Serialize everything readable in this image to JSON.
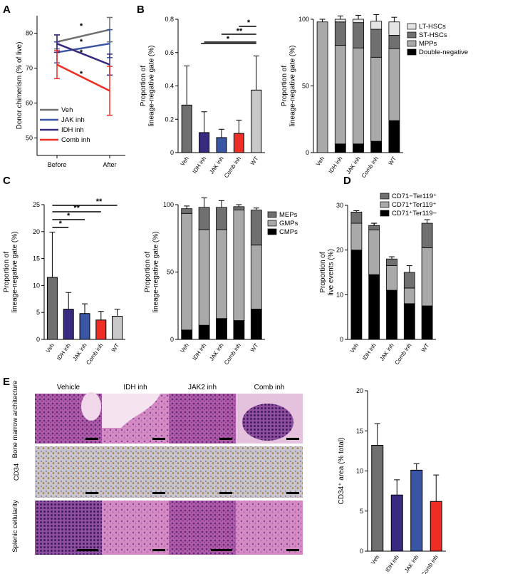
{
  "figure": {
    "colors": {
      "Veh": "#707070",
      "IDH": "#3a2a7e",
      "JAK": "#3a55a4",
      "Comb": "#ee2d24",
      "WT": "#c8c8c8",
      "LT": "#e4e4e4",
      "ST": "#707070",
      "MPP": "#a9a9a9",
      "DN": "#000000",
      "MEP": "#707070",
      "GMP": "#a9a9a9",
      "CMP": "#000000"
    }
  },
  "chart_data": [
    {
      "panel": "A",
      "type": "line",
      "ylabel": "Donor chimerism (% of live)",
      "ylim": [
        45,
        85
      ],
      "yticks": [
        "50",
        "60",
        "70",
        "80"
      ],
      "categories": [
        "Before",
        "After"
      ],
      "series": [
        {
          "name": "Veh",
          "color_key": "Veh",
          "values": [
            77.5,
            81
          ],
          "err": [
            2,
            3.5
          ]
        },
        {
          "name": "JAK inh",
          "color_key": "JAK",
          "values": [
            74.5,
            77
          ],
          "err": [
            3,
            4
          ]
        },
        {
          "name": "IDH inh",
          "color_key": "IDH",
          "values": [
            77,
            71
          ],
          "err": [
            2.5,
            3
          ]
        },
        {
          "name": "Comb inh",
          "color_key": "Comb",
          "values": [
            71,
            63.5
          ],
          "err": [
            4,
            7
          ]
        }
      ],
      "annotations": [
        "*",
        "*",
        "*",
        "*"
      ]
    },
    {
      "panel": "B",
      "type": "bar",
      "ylabel": "Proportion of lineage-negative gate (%)",
      "ylim": [
        0,
        0.8
      ],
      "yticks": [
        "0",
        "0.2",
        "0.4",
        "0.6",
        "0.8"
      ],
      "categories": [
        "Veh",
        "IDH inh",
        "JAK inh",
        "Comb inh",
        "WT"
      ],
      "values": [
        0.285,
        0.12,
        0.09,
        0.115,
        0.375
      ],
      "err": [
        0.235,
        0.125,
        0.05,
        0.08,
        0.205
      ],
      "color_keys": [
        "Veh",
        "IDH",
        "JAK",
        "Comb",
        "WT"
      ],
      "significance": [
        "*",
        "**",
        "*"
      ]
    },
    {
      "panel": "B2",
      "type": "bar",
      "stacked": true,
      "ylabel": "Proportion of lineage-negative gate (%)",
      "ylim": [
        0,
        100
      ],
      "yticks": [
        "0",
        "50",
        "100"
      ],
      "categories": [
        "Veh",
        "IDH inh",
        "JAK inh",
        "Comb inh",
        "WT"
      ],
      "legend": [
        "LT-HSCs",
        "ST-HSCs",
        "MPPs",
        "Double-negative"
      ],
      "legend_color_keys": [
        "LT",
        "ST",
        "MPP",
        "DN"
      ],
      "series": [
        {
          "name": "Double-negative",
          "color_key": "DN",
          "values": [
            0,
            6.5,
            6.5,
            8.5,
            24
          ],
          "err": [
            0,
            5,
            3,
            4,
            8
          ]
        },
        {
          "name": "MPPs",
          "color_key": "MPP",
          "values": [
            98,
            74,
            72,
            63,
            54
          ],
          "err": [
            0,
            4,
            3,
            12,
            6
          ]
        },
        {
          "name": "ST-HSCs",
          "color_key": "ST",
          "values": [
            0,
            17.5,
            19,
            21,
            10
          ],
          "err": [
            0,
            0,
            0,
            0,
            0
          ]
        },
        {
          "name": "LT-HSCs",
          "color_key": "LT",
          "values": [
            0,
            2,
            2.5,
            6,
            10
          ],
          "err": [
            2,
            2.5,
            3,
            5,
            3.5
          ]
        }
      ]
    },
    {
      "panel": "C",
      "type": "bar",
      "ylabel": "Proportion of lineage-negative gate (%)",
      "ylim": [
        0,
        25
      ],
      "yticks": [
        "0",
        "5",
        "10",
        "15",
        "20",
        "25"
      ],
      "categories": [
        "Veh",
        "IDH inh",
        "JAK inh",
        "Comb inh",
        "WT"
      ],
      "values": [
        11.5,
        5.6,
        4.8,
        3.6,
        4.3
      ],
      "err": [
        8.4,
        3.1,
        1.8,
        1.6,
        1.3
      ],
      "color_keys": [
        "Veh",
        "IDH",
        "JAK",
        "Comb",
        "WT"
      ],
      "significance": [
        "*",
        "*",
        "**",
        "**"
      ]
    },
    {
      "panel": "C2",
      "type": "bar",
      "stacked": true,
      "ylabel": "Proportion of lineage-negative gate (%)",
      "ylim": [
        0,
        100
      ],
      "yticks": [
        "0",
        "50",
        "100"
      ],
      "categories": [
        "Veh",
        "IDH inh",
        "JAK inh",
        "Comb inh",
        "WT"
      ],
      "legend": [
        "MEPs",
        "GMPs",
        "CMPs"
      ],
      "legend_color_keys": [
        "MEP",
        "GMP",
        "CMP"
      ],
      "series": [
        {
          "name": "CMPs",
          "color_key": "CMP",
          "values": [
            7,
            10.5,
            15.5,
            14,
            22.5
          ],
          "err": [
            1.5,
            2,
            2,
            2.5,
            4
          ]
        },
        {
          "name": "GMPs",
          "color_key": "GMP",
          "values": [
            86.5,
            71,
            66,
            82,
            47.5
          ],
          "err": [
            0,
            9,
            2,
            2,
            3
          ]
        },
        {
          "name": "MEPs",
          "color_key": "MEP",
          "values": [
            3.5,
            16.5,
            16.5,
            2.5,
            26
          ],
          "err": [
            2,
            7,
            5,
            1.5,
            1.5
          ]
        }
      ]
    },
    {
      "panel": "D",
      "type": "bar",
      "stacked": true,
      "ylabel": "Proportion of live events (%)",
      "ylim": [
        0,
        30
      ],
      "yticks": [
        "0",
        "10",
        "20",
        "30"
      ],
      "categories": [
        "Veh",
        "IDH inh",
        "JAK inh",
        "Comb inh",
        "WT"
      ],
      "legend": [
        "CD71−Ter119⁺",
        "CD71⁺Ter119⁺",
        "CD71⁺Ter119−"
      ],
      "legend_color_keys": [
        "ST",
        "MPP",
        "DN"
      ],
      "series": [
        {
          "name": "CD71⁺Ter119−",
          "color_key": "DN",
          "values": [
            20,
            14.5,
            11,
            8,
            7.5
          ],
          "err": [
            1.5,
            2,
            1,
            1,
            0.3
          ]
        },
        {
          "name": "CD71⁺Ter119⁺",
          "color_key": "MPP",
          "values": [
            6,
            10,
            5.5,
            3.5,
            13
          ],
          "err": [
            1,
            1.5,
            0.8,
            1.5,
            2.5
          ]
        },
        {
          "name": "CD71−Ter119⁺",
          "color_key": "ST",
          "values": [
            2.5,
            1,
            1.5,
            3.5,
            5.5
          ],
          "err": [
            0.3,
            0.5,
            0.5,
            1.5,
            0.8
          ]
        }
      ]
    },
    {
      "panel": "E2",
      "type": "bar",
      "ylabel": "CD34⁺ area (% total)",
      "ylim": [
        0,
        20
      ],
      "yticks": [
        "0",
        "5",
        "10",
        "15",
        "20"
      ],
      "categories": [
        "Veh",
        "IDH inh",
        "JAK inh",
        "Comb inh"
      ],
      "values": [
        13.2,
        7,
        10.1,
        6.2
      ],
      "err": [
        2.7,
        1.9,
        0.8,
        3.3
      ],
      "color_keys": [
        "Veh",
        "IDH",
        "JAK",
        "Comb"
      ]
    }
  ],
  "panel_labels": {
    "A": "A",
    "B": "B",
    "C": "C",
    "D": "D",
    "E": "E"
  },
  "micrographs": {
    "columns": [
      "Vehicle",
      "IDH inh",
      "JAK2 inh",
      "Comb inh"
    ],
    "rows": [
      "Bone marrow architecture",
      "CD34",
      "Splenic cellularity"
    ]
  }
}
